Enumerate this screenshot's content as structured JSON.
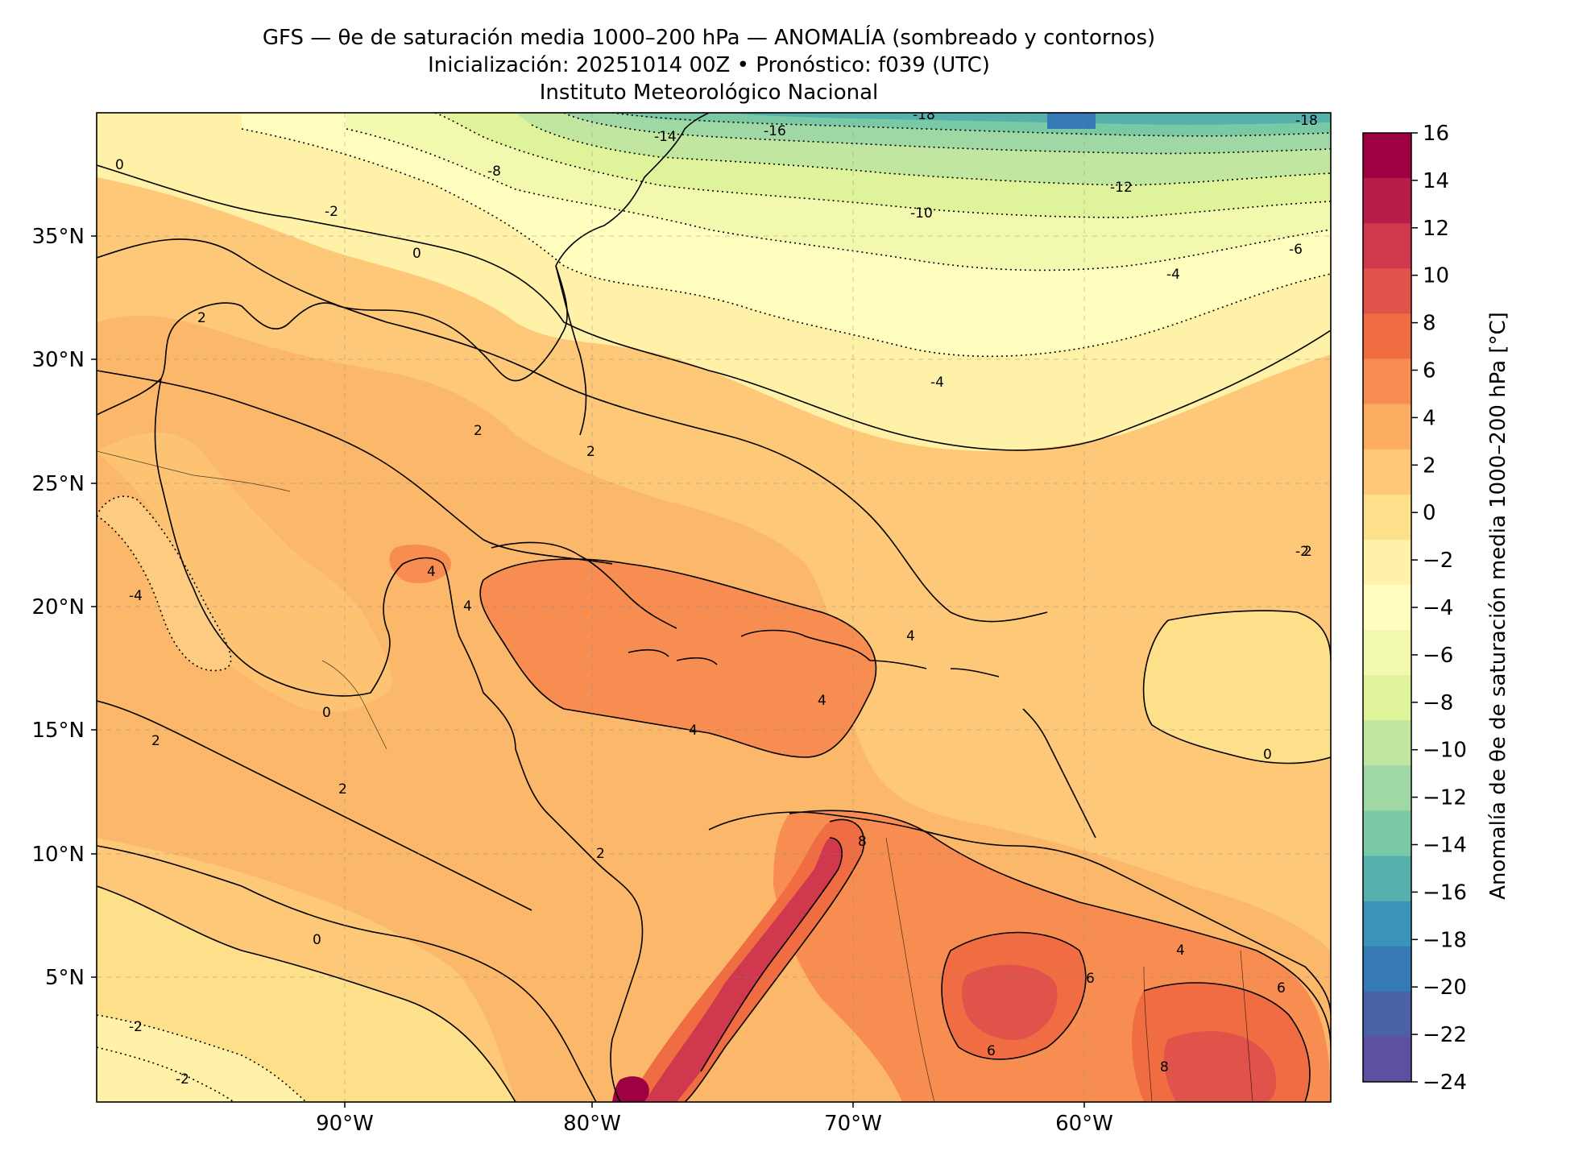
{
  "title": {
    "line1": "GFS — θe de saturación media 1000–200 hPa — ANOMALÍA (sombreado y contornos)",
    "line2": "Inicialización: 20251014 00Z   •   Pronóstico: f039 (UTC)",
    "line3": "Instituto Meteorológico Nacional"
  },
  "map": {
    "lat_ticks": [
      "35°N",
      "30°N",
      "25°N",
      "20°N",
      "15°N",
      "10°N",
      "5°N"
    ],
    "lon_ticks": [
      "90°W",
      "80°W",
      "70°W",
      "60°W"
    ],
    "extent": {
      "lon_min": -99.5,
      "lon_max": -50,
      "lat_min": 0,
      "lat_max": 40
    },
    "contour_labels": [
      "-18",
      "-16",
      "-14",
      "-12",
      "-10",
      "-8",
      "-6",
      "-4",
      "-2",
      "0",
      "2",
      "4",
      "6",
      "8"
    ]
  },
  "colorbar": {
    "label": "Anomalía de θe de saturación media 1000–200 hPa [°C]",
    "ticks": [
      "16",
      "14",
      "12",
      "10",
      "8",
      "6",
      "4",
      "2",
      "0",
      "−2",
      "−4",
      "−6",
      "−8",
      "−10",
      "−12",
      "−14",
      "−16",
      "−18",
      "−20",
      "−22",
      "−24"
    ],
    "colors": [
      "#9e0142",
      "#b81c48",
      "#d0384e",
      "#e0524a",
      "#f06d43",
      "#f88d52",
      "#fbac60",
      "#fdc877",
      "#fee08b",
      "#fff1a8",
      "#fffebe",
      "#f2f9ae",
      "#dff39b",
      "#c0e6a0",
      "#9fd8a4",
      "#79c9a4",
      "#56b1ad",
      "#3a94b9",
      "#3579b5",
      "#4a61a8",
      "#5e4fa2"
    ]
  },
  "colors": {
    "ocean_mid": "#fdc877",
    "north_cool": "#fff1a8",
    "frame": "#000000"
  }
}
